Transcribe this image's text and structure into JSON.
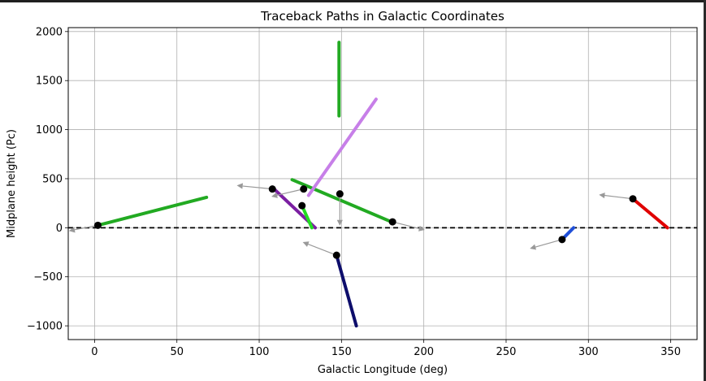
{
  "chart_data": {
    "type": "line",
    "title": "Traceback Paths in Galactic Coordinates",
    "xlabel": "Galactic Longitude (deg)",
    "ylabel": "Midplane height (Pc)",
    "xlim": [
      -16,
      366
    ],
    "ylim": [
      -1140,
      2040
    ],
    "xticks": [
      0,
      50,
      100,
      150,
      200,
      250,
      300,
      350
    ],
    "yticks": [
      -1000,
      -500,
      0,
      500,
      1000,
      1500,
      2000
    ],
    "xtick_labels": [
      "0",
      "50",
      "100",
      "150",
      "200",
      "250",
      "300",
      "350"
    ],
    "ytick_labels": [
      "−1000",
      "−500",
      "0",
      "500",
      "1000",
      "1500",
      "2000"
    ],
    "grid": true,
    "reference_line": {
      "y": 0,
      "style": "dashed",
      "color": "#000000"
    },
    "series": [
      {
        "color": "#22aa22",
        "x": [
          2,
          68
        ],
        "y": [
          25,
          310
        ]
      },
      {
        "color": "#22aa22",
        "x": [
          148.5,
          148.5
        ],
        "y": [
          1140,
          1890
        ]
      },
      {
        "color": "#22aa22",
        "x": [
          120,
          181
        ],
        "y": [
          490,
          55
        ]
      },
      {
        "color": "#c77fe8",
        "x": [
          130,
          171
        ],
        "y": [
          330,
          1310
        ]
      },
      {
        "color": "#7b1fa2",
        "x": [
          109,
          134
        ],
        "y": [
          395,
          0
        ]
      },
      {
        "color": "#22dd22",
        "x": [
          126,
          132
        ],
        "y": [
          225,
          0
        ]
      },
      {
        "color": "#0d0d6b",
        "x": [
          147,
          159
        ],
        "y": [
          -280,
          -1000
        ]
      },
      {
        "color": "#1f4fd8",
        "x": [
          284,
          291
        ],
        "y": [
          -120,
          0
        ]
      },
      {
        "color": "#e00000",
        "x": [
          327,
          348
        ],
        "y": [
          295,
          0
        ]
      }
    ],
    "start_points": [
      {
        "x": 2,
        "y": 25
      },
      {
        "x": 108,
        "y": 395
      },
      {
        "x": 127,
        "y": 395
      },
      {
        "x": 126,
        "y": 225
      },
      {
        "x": 149,
        "y": 345
      },
      {
        "x": 181,
        "y": 60
      },
      {
        "x": 147,
        "y": -280
      },
      {
        "x": 284,
        "y": -120
      },
      {
        "x": 327,
        "y": 295
      }
    ],
    "arrows": [
      {
        "x1": 2,
        "y1": 25,
        "x2": -15,
        "y2": -30
      },
      {
        "x1": 108,
        "y1": 395,
        "x2": 87,
        "y2": 430
      },
      {
        "x1": 127,
        "y1": 395,
        "x2": 108,
        "y2": 320
      },
      {
        "x1": 149,
        "y1": 345,
        "x2": 149,
        "y2": 30
      },
      {
        "x1": 181,
        "y1": 60,
        "x2": 200,
        "y2": -20
      },
      {
        "x1": 147,
        "y1": -280,
        "x2": 127,
        "y2": -150
      },
      {
        "x1": 284,
        "y1": -120,
        "x2": 265,
        "y2": -210
      },
      {
        "x1": 327,
        "y1": 295,
        "x2": 307,
        "y2": 335
      }
    ]
  }
}
